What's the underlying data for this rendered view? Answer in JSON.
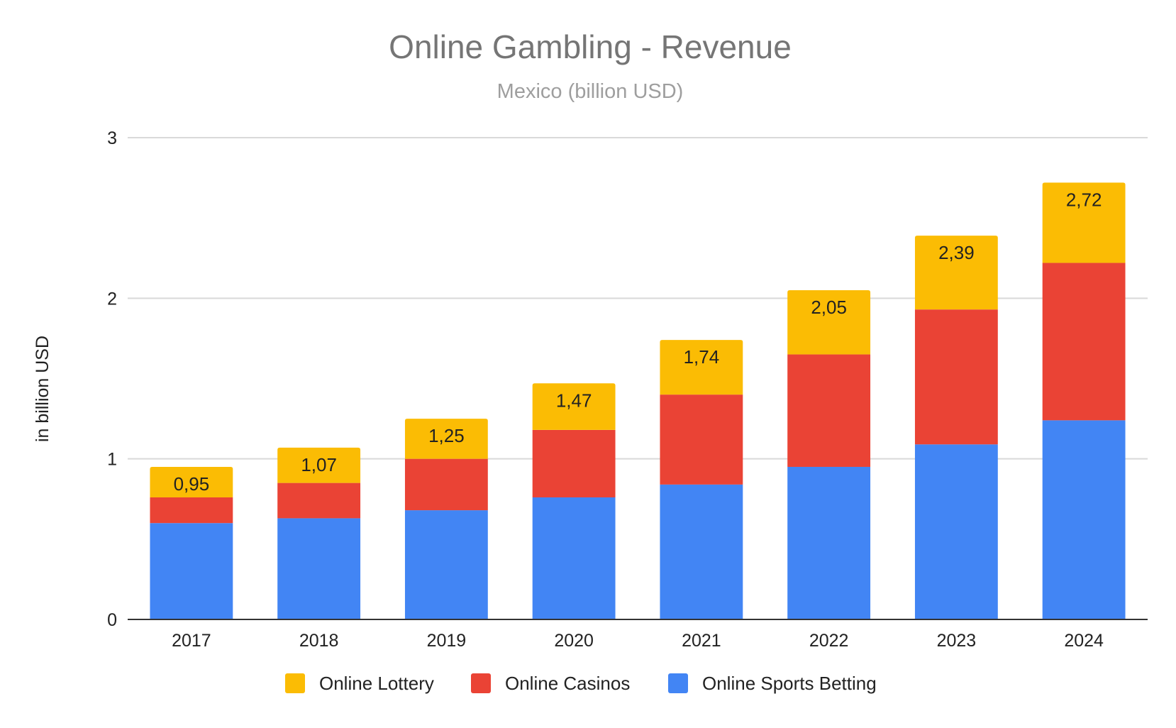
{
  "chart_data": {
    "type": "bar",
    "stacked": true,
    "title": "Online Gambling - Revenue",
    "subtitle": "Mexico (billion USD)",
    "xlabel": "",
    "ylabel": "in billion USD",
    "ylim": [
      0,
      3
    ],
    "yticks": [
      "0",
      "1",
      "2",
      "3"
    ],
    "grid": true,
    "legend_position": "bottom",
    "categories": [
      "2017",
      "2018",
      "2019",
      "2020",
      "2021",
      "2022",
      "2023",
      "2024"
    ],
    "series": [
      {
        "name": "Online Sports Betting",
        "color": "#4285F4",
        "values": [
          0.6,
          0.63,
          0.68,
          0.76,
          0.84,
          0.95,
          1.09,
          1.24
        ]
      },
      {
        "name": "Online Casinos",
        "color": "#EA4335",
        "values": [
          0.16,
          0.22,
          0.32,
          0.42,
          0.56,
          0.7,
          0.84,
          0.98
        ]
      },
      {
        "name": "Online Lottery",
        "color": "#FBBC04",
        "values": [
          0.19,
          0.22,
          0.25,
          0.29,
          0.34,
          0.4,
          0.46,
          0.5
        ]
      }
    ],
    "total_labels": [
      "0,95",
      "1,07",
      "1,25",
      "1,47",
      "1,74",
      "2,05",
      "2,39",
      "2,72"
    ],
    "totals": [
      0.95,
      1.07,
      1.25,
      1.47,
      1.74,
      2.05,
      2.39,
      2.72
    ],
    "legend_order": [
      "Online Lottery",
      "Online Casinos",
      "Online Sports Betting"
    ]
  }
}
